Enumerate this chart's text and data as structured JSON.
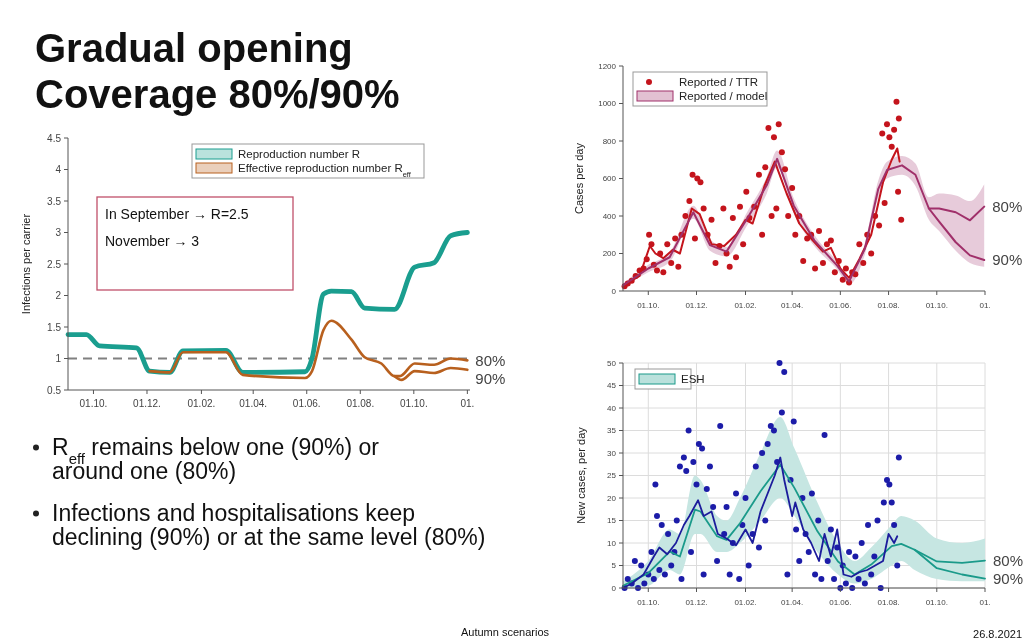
{
  "chart_data": [
    {
      "type": "line",
      "title": "Gradual opening\nCoverage 80%/90%",
      "ylabel": "Infections per carrier",
      "xlim": [
        "2020-09-02",
        "2021-12-04"
      ],
      "ylim": [
        0.5,
        4.5
      ],
      "yticks": [
        0.5,
        1,
        1.5,
        2,
        2.5,
        3,
        3.5,
        4,
        4.5
      ],
      "xticks": [
        {
          "value": "2020-10-01",
          "label": "01.10."
        },
        {
          "value": "2020-12-01",
          "label": "01.12."
        },
        {
          "value": "2021-02-01",
          "label": "01.02."
        },
        {
          "value": "2021-04-01",
          "label": "01.04."
        },
        {
          "value": "2021-06-01",
          "label": "01.06."
        },
        {
          "value": "2021-08-01",
          "label": "01.08."
        },
        {
          "value": "2021-10-01",
          "label": "01.10."
        },
        {
          "value": "2021-12-01",
          "label": "01."
        }
      ],
      "legend": "top right",
      "ref_lines": [
        {
          "axis": "y",
          "value": 1,
          "color": "#808080",
          "line_style": "dashed"
        }
      ],
      "series": [
        {
          "name": "Reproduction number R",
          "color": "#1a9e8f",
          "x": [
            "2020-09-02",
            "2020-09-23",
            "2020-10-08",
            "2020-11-19",
            "2020-12-04",
            "2020-12-27",
            "2021-01-11",
            "2021-03-01",
            "2021-03-20",
            "2021-05-30",
            "2021-06-07",
            "2021-06-20",
            "2021-06-29",
            "2021-07-22",
            "2021-08-06",
            "2021-09-09",
            "2021-10-02",
            "2021-10-24",
            "2021-11-12",
            "2021-12-01"
          ],
          "values": [
            1.38,
            1.38,
            1.2,
            1.17,
            0.8,
            0.78,
            1.12,
            1.13,
            0.78,
            0.79,
            1.0,
            2.02,
            2.07,
            2.06,
            1.8,
            1.78,
            2.45,
            2.52,
            2.95,
            3.0
          ]
        },
        {
          "name": "Effective reproduction number R$_{eff}$",
          "color": "#b8601e",
          "x": [
            "2020-12-04",
            "2020-12-27",
            "2021-01-11",
            "2021-03-01",
            "2021-03-20",
            "2021-05-30",
            "2021-06-07",
            "2021-06-20",
            "2021-06-29",
            "2021-07-22",
            "2021-08-06",
            "2021-08-25",
            "2021-09-09",
            "2021-09-15",
            "2021-10-02",
            "2021-10-24",
            "2021-11-12",
            "2021-12-01"
          ],
          "values": [
            0.8,
            0.78,
            1.1,
            1.1,
            0.74,
            0.69,
            0.8,
            1.45,
            1.6,
            1.3,
            1.02,
            0.92,
            0.72,
            0.72,
            0.92,
            0.9,
            1.0,
            0.97
          ]
        },
        {
          "color": "#b8601e",
          "x": [
            "2021-09-09",
            "2021-09-17",
            "2021-10-02",
            "2021-10-24",
            "2021-11-12",
            "2021-12-01"
          ],
          "values": [
            0.72,
            0.66,
            0.8,
            0.77,
            0.85,
            0.82
          ]
        }
      ],
      "annotations": [
        "In September → R=2.5",
        "November → 3",
        "R$_{eff}$ remains below one (90%) or around one (80%)",
        "Infections and hospitalisations keep declining (90%) or at the same level (80%)",
        "Autumn scenarios",
        "26.8.2021",
        {
          "text": "80%",
          "x": "2021-12-01",
          "y": 0.97
        },
        {
          "text": "90%",
          "x": "2021-12-01",
          "y": 0.82
        }
      ]
    },
    {
      "type": "line",
      "ylabel": "Cases per day",
      "xlim": [
        "2020-08-30",
        "2021-12-01"
      ],
      "ylim": [
        0,
        1200
      ],
      "yticks": [
        0,
        200,
        400,
        600,
        800,
        1000,
        1200
      ],
      "xticks": [
        {
          "value": "2020-10-01",
          "label": "01.10."
        },
        {
          "value": "2020-12-01",
          "label": "01.12."
        },
        {
          "value": "2021-02-01",
          "label": "01.02."
        },
        {
          "value": "2021-04-01",
          "label": "01.04."
        },
        {
          "value": "2021-06-01",
          "label": "01.06."
        },
        {
          "value": "2021-08-01",
          "label": "01.08."
        },
        {
          "value": "2021-10-01",
          "label": "01.10."
        },
        {
          "value": "2021-12-01",
          "label": "01."
        }
      ],
      "legend": "top left",
      "series": [
        {
          "name": "Reported / TTR",
          "type": "scatter",
          "marker": "circle",
          "color": "#c4141c",
          "x": [
            "2020-09-01",
            "2020-09-05",
            "2020-09-10",
            "2020-09-15",
            "2020-09-20",
            "2020-09-25",
            "2020-09-29",
            "2020-10-02",
            "2020-10-05",
            "2020-10-08",
            "2020-10-12",
            "2020-10-16",
            "2020-10-20",
            "2020-10-25",
            "2020-10-30",
            "2020-11-04",
            "2020-11-08",
            "2020-11-12",
            "2020-11-17",
            "2020-11-22",
            "2020-11-26",
            "2020-11-29",
            "2020-12-02",
            "2020-12-06",
            "2020-12-10",
            "2020-12-15",
            "2020-12-20",
            "2020-12-25",
            "2020-12-30",
            "2021-01-04",
            "2021-01-08",
            "2021-01-12",
            "2021-01-16",
            "2021-01-20",
            "2021-01-25",
            "2021-01-29",
            "2021-02-02",
            "2021-02-06",
            "2021-02-12",
            "2021-02-18",
            "2021-02-22",
            "2021-02-26",
            "2021-03-02",
            "2021-03-06",
            "2021-03-09",
            "2021-03-12",
            "2021-03-15",
            "2021-03-19",
            "2021-03-23",
            "2021-03-27",
            "2021-04-01",
            "2021-04-05",
            "2021-04-10",
            "2021-04-15",
            "2021-04-20",
            "2021-04-25",
            "2021-04-30",
            "2021-05-05",
            "2021-05-10",
            "2021-05-15",
            "2021-05-20",
            "2021-05-25",
            "2021-05-30",
            "2021-06-04",
            "2021-06-08",
            "2021-06-12",
            "2021-06-16",
            "2021-06-20",
            "2021-06-25",
            "2021-06-30",
            "2021-07-05",
            "2021-07-10",
            "2021-07-15",
            "2021-07-20",
            "2021-07-24",
            "2021-07-27",
            "2021-07-30",
            "2021-08-02",
            "2021-08-05",
            "2021-08-08",
            "2021-08-11",
            "2021-08-13",
            "2021-08-14",
            "2021-08-17"
          ],
          "values": [
            25,
            40,
            55,
            80,
            110,
            120,
            170,
            300,
            250,
            140,
            110,
            200,
            100,
            250,
            150,
            280,
            130,
            300,
            400,
            480,
            620,
            280,
            600,
            580,
            440,
            300,
            380,
            150,
            240,
            440,
            200,
            130,
            390,
            180,
            450,
            250,
            530,
            390,
            450,
            620,
            300,
            660,
            870,
            400,
            820,
            440,
            890,
            740,
            650,
            400,
            550,
            300,
            400,
            160,
            280,
            300,
            120,
            320,
            150,
            250,
            270,
            100,
            160,
            60,
            120,
            45,
            100,
            90,
            250,
            150,
            300,
            200,
            400,
            350,
            840,
            470,
            890,
            820,
            770,
            860,
            1010,
            530,
            920,
            380
          ]
        },
        {
          "color": "#c4141c",
          "x": [
            "2020-08-30",
            "2020-09-20",
            "2020-10-03",
            "2020-10-10",
            "2020-10-20",
            "2020-11-01",
            "2020-11-10",
            "2020-11-25",
            "2020-12-05",
            "2020-12-20",
            "2021-01-05",
            "2021-01-20",
            "2021-02-01",
            "2021-02-10",
            "2021-02-25",
            "2021-03-10",
            "2021-03-25",
            "2021-04-10",
            "2021-04-25",
            "2021-05-10",
            "2021-05-20",
            "2021-06-01",
            "2021-06-12",
            "2021-06-25",
            "2021-07-10",
            "2021-07-25",
            "2021-08-05",
            "2021-08-12",
            "2021-08-15"
          ],
          "values": [
            30,
            80,
            240,
            200,
            175,
            220,
            200,
            440,
            410,
            250,
            240,
            300,
            380,
            360,
            560,
            690,
            520,
            360,
            280,
            210,
            230,
            120,
            70,
            170,
            300,
            580,
            700,
            760,
            690
          ]
        },
        {
          "name": "Reported / model",
          "color": "#a0306a",
          "x": [
            "2020-08-30",
            "2020-10-01",
            "2020-10-28",
            "2020-11-27",
            "2020-12-18",
            "2021-01-08",
            "2021-02-03",
            "2021-02-28",
            "2021-03-13",
            "2021-04-03",
            "2021-04-29",
            "2021-05-28",
            "2021-06-12",
            "2021-07-02",
            "2021-07-19",
            "2021-07-30",
            "2021-08-18",
            "2021-09-04",
            "2021-09-21",
            "2021-10-04",
            "2021-10-25",
            "2021-11-12",
            "2021-11-30"
          ],
          "values": [
            30,
            120,
            180,
            420,
            245,
            210,
            385,
            565,
            705,
            455,
            270,
            135,
            50,
            225,
            545,
            645,
            670,
            620,
            440,
            440,
            420,
            377,
            450
          ],
          "lower": [
            20,
            100,
            155,
            385,
            215,
            185,
            350,
            520,
            660,
            415,
            240,
            115,
            35,
            195,
            500,
            600,
            620,
            560,
            380,
            320,
            215,
            150,
            130
          ],
          "upper": [
            40,
            140,
            205,
            455,
            275,
            235,
            420,
            610,
            750,
            495,
            300,
            155,
            65,
            255,
            590,
            690,
            720,
            680,
            500,
            520,
            510,
            480,
            570
          ]
        },
        {
          "color": "#a0306a",
          "x": [
            "2021-09-21",
            "2021-10-04",
            "2021-10-25",
            "2021-11-12",
            "2021-11-30"
          ],
          "values": [
            440,
            370,
            260,
            190,
            165
          ]
        }
      ],
      "annotations": [
        {
          "text": "80%",
          "x": "2021-11-30",
          "y": 450
        },
        {
          "text": "90%",
          "x": "2021-11-30",
          "y": 165
        }
      ]
    },
    {
      "type": "line",
      "ylabel": "New cases, per day",
      "xlim": [
        "2020-08-30",
        "2021-12-01"
      ],
      "ylim": [
        0,
        50
      ],
      "yticks": [
        0,
        5,
        10,
        15,
        20,
        25,
        30,
        35,
        40,
        45,
        50
      ],
      "grid": true,
      "xticks": [
        {
          "value": "2020-10-01",
          "label": "01.10."
        },
        {
          "value": "2020-12-01",
          "label": "01.12."
        },
        {
          "value": "2021-02-01",
          "label": "01.02."
        },
        {
          "value": "2021-04-01",
          "label": "01.04."
        },
        {
          "value": "2021-06-01",
          "label": "01.06."
        },
        {
          "value": "2021-08-01",
          "label": "01.08."
        },
        {
          "value": "2021-10-01",
          "label": "01.10."
        },
        {
          "value": "2021-12-01",
          "label": "01."
        }
      ],
      "legend": "top left",
      "series": [
        {
          "name": "ESH",
          "color": "#1a9a8a",
          "x": [
            "2020-08-30",
            "2020-10-01",
            "2020-10-28",
            "2020-11-10",
            "2020-11-29",
            "2020-12-06",
            "2020-12-27",
            "2021-01-08",
            "2021-01-25",
            "2021-02-20",
            "2021-03-17",
            "2021-04-04",
            "2021-05-03",
            "2021-05-29",
            "2021-06-19",
            "2021-07-10",
            "2021-08-05",
            "2021-08-17",
            "2021-09-03",
            "2021-10-01",
            "2021-11-02",
            "2021-12-01"
          ],
          "values": [
            0.5,
            3.3,
            8.1,
            7,
            17.4,
            17,
            11.5,
            10.7,
            14.4,
            21.5,
            27.4,
            22.2,
            12.6,
            5.9,
            3,
            5.2,
            9.3,
            9.8,
            8.5,
            5.9,
            5.6,
            6.1
          ],
          "lower": [
            0,
            0.5,
            4,
            3,
            12,
            12,
            8,
            8,
            10,
            15,
            20,
            16,
            8,
            3,
            1,
            2,
            5,
            6,
            4,
            2,
            1.5,
            1.5
          ],
          "upper": [
            1.5,
            6,
            13,
            12,
            25,
            24,
            16,
            15,
            20,
            30,
            38,
            31,
            19,
            10,
            6,
            9,
            14,
            16,
            15,
            11,
            10,
            11
          ]
        },
        {
          "color": "#1a9a8a",
          "x": [
            "2021-09-03",
            "2021-10-01",
            "2021-11-02",
            "2021-12-01"
          ],
          "values": [
            8.5,
            4.4,
            3,
            2.1
          ]
        },
        {
          "type": "scatter",
          "marker": "circle",
          "color": "#1c1ca8",
          "x": [
            "2020-09-01",
            "2020-09-05",
            "2020-09-10",
            "2020-09-14",
            "2020-09-18",
            "2020-09-22",
            "2020-09-26",
            "2020-10-01",
            "2020-10-05",
            "2020-10-08",
            "2020-10-10",
            "2020-10-12",
            "2020-10-15",
            "2020-10-18",
            "2020-10-22",
            "2020-10-26",
            "2020-10-30",
            "2020-11-03",
            "2020-11-06",
            "2020-11-10",
            "2020-11-12",
            "2020-11-15",
            "2020-11-18",
            "2020-11-21",
            "2020-11-24",
            "2020-11-27",
            "2020-12-01",
            "2020-12-04",
            "2020-12-08",
            "2020-12-10",
            "2020-12-14",
            "2020-12-18",
            "2020-12-22",
            "2020-12-27",
            "2020-12-31",
            "2021-01-05",
            "2021-01-08",
            "2021-01-12",
            "2021-01-16",
            "2021-01-20",
            "2021-01-24",
            "2021-01-28",
            "2021-02-01",
            "2021-02-05",
            "2021-02-10",
            "2021-02-14",
            "2021-02-18",
            "2021-02-22",
            "2021-02-26",
            "2021-03-01",
            "2021-03-05",
            "2021-03-09",
            "2021-03-13",
            "2021-03-16",
            "2021-03-19",
            "2021-03-22",
            "2021-03-26",
            "2021-03-30",
            "2021-04-03",
            "2021-04-06",
            "2021-04-10",
            "2021-04-14",
            "2021-04-18",
            "2021-04-22",
            "2021-04-26",
            "2021-04-30",
            "2021-05-04",
            "2021-05-08",
            "2021-05-12",
            "2021-05-16",
            "2021-05-20",
            "2021-05-24",
            "2021-05-28",
            "2021-06-01",
            "2021-06-04",
            "2021-06-08",
            "2021-06-12",
            "2021-06-16",
            "2021-06-20",
            "2021-06-24",
            "2021-06-28",
            "2021-07-02",
            "2021-07-06",
            "2021-07-10",
            "2021-07-14",
            "2021-07-18",
            "2021-07-22",
            "2021-07-26",
            "2021-07-30",
            "2021-08-02",
            "2021-08-05",
            "2021-08-08",
            "2021-08-12",
            "2021-08-14"
          ],
          "values": [
            0,
            2,
            1,
            6,
            0,
            5,
            1,
            3,
            8,
            2,
            23,
            16,
            4,
            14,
            3,
            12,
            5,
            8,
            15,
            27,
            2,
            29,
            26,
            35,
            8,
            28,
            23,
            32,
            31,
            3,
            22,
            27,
            18,
            6,
            36,
            12,
            18,
            3,
            10,
            21,
            2,
            14,
            20,
            5,
            12,
            27,
            9,
            30,
            15,
            32,
            36,
            35,
            28,
            50,
            39,
            48,
            3,
            24,
            37,
            13,
            6,
            20,
            12,
            8,
            21,
            3,
            15,
            2,
            34,
            6,
            13,
            2,
            9,
            0,
            5,
            1,
            8,
            0,
            7,
            2,
            10,
            1,
            14,
            3,
            7,
            15,
            0,
            19,
            24,
            23,
            19,
            14,
            5,
            29
          ]
        },
        {
          "color": "#1c1c9c",
          "x": [
            "2020-08-30",
            "2020-09-10",
            "2020-09-25",
            "2020-10-08",
            "2020-10-15",
            "2020-10-25",
            "2020-11-05",
            "2020-11-15",
            "2020-11-22",
            "2020-12-03",
            "2020-12-10",
            "2020-12-20",
            "2020-12-28",
            "2021-01-08",
            "2021-01-20",
            "2021-02-01",
            "2021-02-10",
            "2021-02-20",
            "2021-03-01",
            "2021-03-10",
            "2021-03-17",
            "2021-03-22",
            "2021-04-01",
            "2021-04-05",
            "2021-04-15",
            "2021-04-25",
            "2021-05-05",
            "2021-05-12",
            "2021-05-20",
            "2021-05-28",
            "2021-06-05",
            "2021-06-15",
            "2021-06-25",
            "2021-07-05",
            "2021-07-15",
            "2021-07-25",
            "2021-08-01",
            "2021-08-08",
            "2021-08-12"
          ],
          "values": [
            0,
            1,
            3,
            7,
            9,
            7.5,
            10,
            14,
            16,
            19.5,
            16,
            17,
            12,
            11,
            9.5,
            13,
            10,
            17,
            21,
            25,
            29,
            24,
            16,
            19,
            13,
            10,
            6,
            12,
            7,
            13,
            3,
            2.5,
            3.5,
            4,
            5,
            6,
            12,
            10,
            11.5
          ]
        }
      ],
      "annotations": [
        {
          "text": "80%",
          "x": "2021-12-01",
          "y": 6.1
        },
        {
          "text": "90%",
          "x": "2021-12-01",
          "y": 2.1
        }
      ]
    }
  ]
}
